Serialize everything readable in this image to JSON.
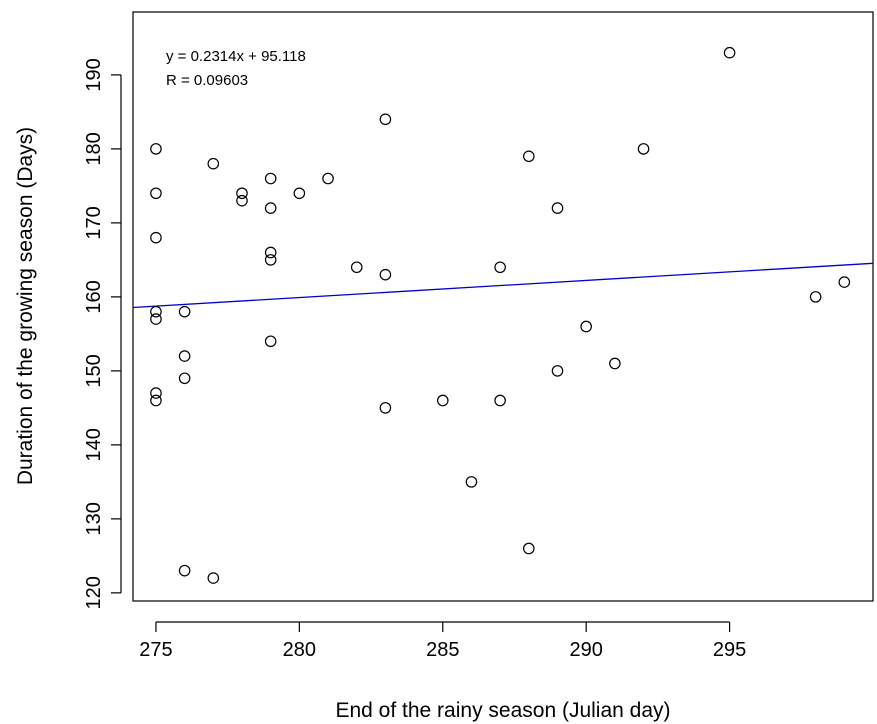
{
  "chart_data": {
    "type": "scatter",
    "title": "",
    "xlabel": "End of the rainy season (Julian day)",
    "ylabel": "Duration of the growing season (Days)",
    "xlim": [
      274.2,
      300.0
    ],
    "ylim": [
      118.9,
      198.5
    ],
    "xticks": [
      275,
      280,
      285,
      290,
      295
    ],
    "yticks": [
      120,
      130,
      140,
      150,
      160,
      170,
      180,
      190
    ],
    "grid": false,
    "legend": "none",
    "annotations": [
      "y = 0.2314x + 95.118",
      "R = 0.09603"
    ],
    "trendline": {
      "slope": 0.2314,
      "intercept": 95.118,
      "color": "#0000cc"
    },
    "marker_color": "#000000",
    "points": [
      {
        "x": 275,
        "y": 180
      },
      {
        "x": 275,
        "y": 174
      },
      {
        "x": 275,
        "y": 168
      },
      {
        "x": 275,
        "y": 158
      },
      {
        "x": 275,
        "y": 157
      },
      {
        "x": 275,
        "y": 147
      },
      {
        "x": 275,
        "y": 146
      },
      {
        "x": 276,
        "y": 158
      },
      {
        "x": 276,
        "y": 152
      },
      {
        "x": 276,
        "y": 149
      },
      {
        "x": 276,
        "y": 123
      },
      {
        "x": 277,
        "y": 178
      },
      {
        "x": 277,
        "y": 122
      },
      {
        "x": 278,
        "y": 174
      },
      {
        "x": 278,
        "y": 173
      },
      {
        "x": 279,
        "y": 176
      },
      {
        "x": 279,
        "y": 172
      },
      {
        "x": 279,
        "y": 166
      },
      {
        "x": 279,
        "y": 165
      },
      {
        "x": 279,
        "y": 154
      },
      {
        "x": 280,
        "y": 174
      },
      {
        "x": 281,
        "y": 176
      },
      {
        "x": 282,
        "y": 164
      },
      {
        "x": 283,
        "y": 184
      },
      {
        "x": 283,
        "y": 163
      },
      {
        "x": 283,
        "y": 145
      },
      {
        "x": 285,
        "y": 146
      },
      {
        "x": 286,
        "y": 135
      },
      {
        "x": 287,
        "y": 164
      },
      {
        "x": 287,
        "y": 146
      },
      {
        "x": 288,
        "y": 179
      },
      {
        "x": 288,
        "y": 126
      },
      {
        "x": 289,
        "y": 172
      },
      {
        "x": 289,
        "y": 150
      },
      {
        "x": 290,
        "y": 156
      },
      {
        "x": 291,
        "y": 151
      },
      {
        "x": 292,
        "y": 180
      },
      {
        "x": 295,
        "y": 193
      },
      {
        "x": 298,
        "y": 160
      },
      {
        "x": 299,
        "y": 162
      }
    ]
  }
}
